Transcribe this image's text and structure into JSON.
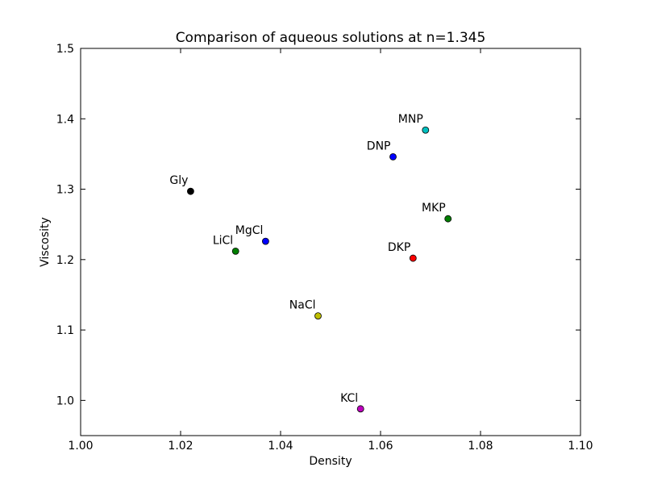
{
  "chart_data": {
    "type": "scatter",
    "title": "Comparison of aqueous solutions at n=1.345",
    "xlabel": "Density",
    "ylabel": "Viscosity",
    "xlim": [
      1.0,
      1.1
    ],
    "ylim": [
      0.95,
      1.5
    ],
    "x_ticks": [
      "1.00",
      "1.02",
      "1.04",
      "1.06",
      "1.08",
      "1.10"
    ],
    "y_ticks": [
      "1.0",
      "1.1",
      "1.2",
      "1.3",
      "1.4",
      "1.5"
    ],
    "grid": false,
    "points": [
      {
        "label": "Gly",
        "x": 1.022,
        "y": 1.297,
        "color": "#000000"
      },
      {
        "label": "LiCl",
        "x": 1.031,
        "y": 1.212,
        "color": "#007f00"
      },
      {
        "label": "MgCl",
        "x": 1.037,
        "y": 1.226,
        "color": "#0000ff"
      },
      {
        "label": "NaCl",
        "x": 1.0475,
        "y": 1.12,
        "color": "#bfbf00"
      },
      {
        "label": "KCl",
        "x": 1.056,
        "y": 0.988,
        "color": "#bf00bf"
      },
      {
        "label": "DNP",
        "x": 1.0625,
        "y": 1.346,
        "color": "#0000ff"
      },
      {
        "label": "MNP",
        "x": 1.069,
        "y": 1.384,
        "color": "#00bfbf"
      },
      {
        "label": "DKP",
        "x": 1.0665,
        "y": 1.202,
        "color": "#ff0000"
      },
      {
        "label": "MKP",
        "x": 1.0735,
        "y": 1.258,
        "color": "#007f00"
      }
    ]
  }
}
